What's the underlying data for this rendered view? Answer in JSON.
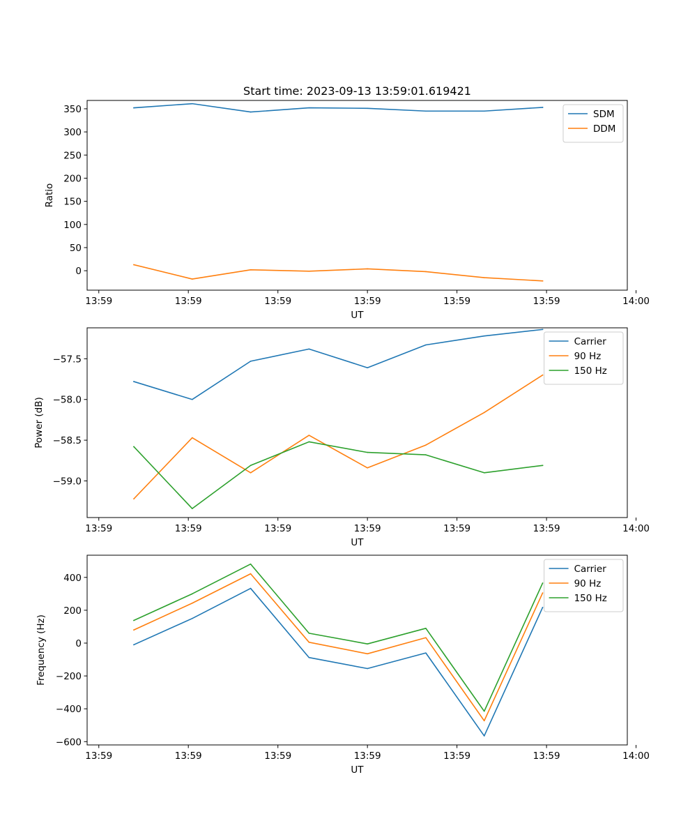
{
  "figure_title": "Start time: 2023-09-13 13:59:01.619421",
  "chart_data": [
    {
      "type": "line",
      "title": "Start time: 2023-09-13 13:59:01.619421",
      "xlabel": "UT",
      "ylabel": "Ratio",
      "x": [
        1,
        2,
        3,
        4,
        5,
        6,
        7,
        8
      ],
      "xlim": [
        0.2,
        9.45
      ],
      "xticks": [
        0.4,
        1.933,
        3.467,
        5.0,
        6.533,
        8.067,
        9.6
      ],
      "xtick_labels": [
        "13:59",
        "13:59",
        "13:59",
        "13:59",
        "13:59",
        "13:59",
        "14:00"
      ],
      "ylim": [
        -42,
        368
      ],
      "yticks": [
        0,
        50,
        100,
        150,
        200,
        250,
        300,
        350
      ],
      "ytick_labels": [
        "0",
        "50",
        "100",
        "150",
        "200",
        "250",
        "300",
        "350"
      ],
      "legend_position": "top-right",
      "series": [
        {
          "name": "SDM",
          "color": "#1f77b4",
          "values": [
            352,
            361,
            343,
            352,
            351,
            345,
            345,
            353
          ]
        },
        {
          "name": "DDM",
          "color": "#ff7f0e",
          "values": [
            13,
            -18,
            2,
            -1,
            4,
            -2,
            -15,
            -22
          ]
        }
      ]
    },
    {
      "type": "line",
      "title": "",
      "xlabel": "UT",
      "ylabel": "Power (dB)",
      "x": [
        1,
        2,
        3,
        4,
        5,
        6,
        7,
        8
      ],
      "xlim": [
        0.2,
        9.45
      ],
      "xticks": [
        0.4,
        1.933,
        3.467,
        5.0,
        6.533,
        8.067,
        9.6
      ],
      "xtick_labels": [
        "13:59",
        "13:59",
        "13:59",
        "13:59",
        "13:59",
        "13:59",
        "14:00"
      ],
      "ylim": [
        -59.45,
        -57.12
      ],
      "yticks": [
        -59.0,
        -58.5,
        -58.0,
        -57.5
      ],
      "ytick_labels": [
        "−59.0",
        "−58.5",
        "−58.0",
        "−57.5"
      ],
      "legend_position": "top-right",
      "series": [
        {
          "name": "Carrier",
          "color": "#1f77b4",
          "values": [
            -57.78,
            -58.0,
            -57.53,
            -57.38,
            -57.61,
            -57.33,
            -57.22,
            -57.14
          ]
        },
        {
          "name": "90 Hz",
          "color": "#ff7f0e",
          "values": [
            -59.22,
            -58.47,
            -58.9,
            -58.44,
            -58.84,
            -58.56,
            -58.16,
            -57.7
          ]
        },
        {
          "name": "150 Hz",
          "color": "#2ca02c",
          "values": [
            -58.58,
            -59.34,
            -58.81,
            -58.52,
            -58.65,
            -58.68,
            -58.9,
            -58.81
          ]
        }
      ]
    },
    {
      "type": "line",
      "title": "",
      "xlabel": "UT",
      "ylabel": "Frequency (Hz)",
      "x": [
        1,
        2,
        3,
        4,
        5,
        6,
        7,
        8
      ],
      "xlim": [
        0.2,
        9.45
      ],
      "xticks": [
        0.4,
        1.933,
        3.467,
        5.0,
        6.533,
        8.067,
        9.6
      ],
      "xtick_labels": [
        "13:59",
        "13:59",
        "13:59",
        "13:59",
        "13:59",
        "13:59",
        "14:00"
      ],
      "ylim": [
        -620,
        535
      ],
      "yticks": [
        -600,
        -400,
        -200,
        0,
        200,
        400
      ],
      "ytick_labels": [
        "−600",
        "−400",
        "−200",
        "0",
        "200",
        "400"
      ],
      "legend_position": "top-right",
      "series": [
        {
          "name": "Carrier",
          "color": "#1f77b4",
          "values": [
            -10,
            150,
            333,
            -88,
            -155,
            -60,
            -565,
            217
          ]
        },
        {
          "name": "90 Hz",
          "color": "#ff7f0e",
          "values": [
            80,
            243,
            422,
            5,
            -65,
            33,
            -473,
            305
          ]
        },
        {
          "name": "150 Hz",
          "color": "#2ca02c",
          "values": [
            138,
            300,
            481,
            60,
            -5,
            90,
            -415,
            365
          ]
        }
      ]
    }
  ]
}
